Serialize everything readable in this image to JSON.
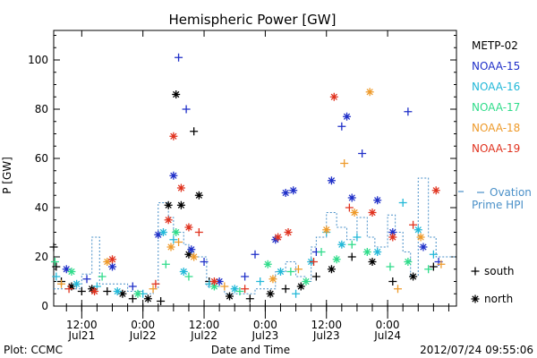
{
  "chart_data": {
    "type": "scatter",
    "title": "Hemispheric Power [GW]",
    "ylabel": "P [GW]",
    "xlabel": "Date and Time",
    "ylim": [
      0,
      112
    ],
    "y_ticks": [
      0,
      20,
      40,
      60,
      80,
      100
    ],
    "x_ticks": [
      {
        "time": "2012-07-21 12:00",
        "label_top": "12:00",
        "label_bottom": "Jul21"
      },
      {
        "time": "2012-07-22 00:00",
        "label_top": "0:00",
        "label_bottom": "Jul22"
      },
      {
        "time": "2012-07-22 12:00",
        "label_top": "12:00",
        "label_bottom": "Jul22"
      },
      {
        "time": "2012-07-23 00:00",
        "label_top": "0:00",
        "label_bottom": "Jul23"
      },
      {
        "time": "2012-07-23 12:00",
        "label_top": "12:00",
        "label_bottom": "Jul23"
      },
      {
        "time": "2012-07-24 00:00",
        "label_top": "0:00",
        "label_bottom": "Jul24"
      }
    ],
    "xlim": [
      "2012-07-21 06:30",
      "2012-07-24 13:30"
    ],
    "legend_placement": "right",
    "marker_legend": [
      {
        "symbol": "+",
        "label": "south"
      },
      {
        "symbol": "*",
        "label": "north"
      }
    ],
    "ovation_label_line1": "Ovation",
    "ovation_label_line2": "Prime HPI",
    "ovation_color": "#4a90c8",
    "ovation_steps": [
      [
        "2012-07-21 06:30",
        7
      ],
      [
        "2012-07-21 12:00",
        13
      ],
      [
        "2012-07-21 14:00",
        28
      ],
      [
        "2012-07-21 15:30",
        9
      ],
      [
        "2012-07-21 21:00",
        6
      ],
      [
        "2012-07-22 00:00",
        5
      ],
      [
        "2012-07-22 02:00",
        7
      ],
      [
        "2012-07-22 03:00",
        42
      ],
      [
        "2012-07-22 05:00",
        36
      ],
      [
        "2012-07-22 06:00",
        30
      ],
      [
        "2012-07-22 08:00",
        25
      ],
      [
        "2012-07-22 09:00",
        22
      ],
      [
        "2012-07-22 10:00",
        20
      ],
      [
        "2012-07-22 12:30",
        8
      ],
      [
        "2012-07-22 16:00",
        5
      ],
      [
        "2012-07-22 22:00",
        7
      ],
      [
        "2012-07-23 02:00",
        14
      ],
      [
        "2012-07-23 04:00",
        18
      ],
      [
        "2012-07-23 06:00",
        12
      ],
      [
        "2012-07-23 08:00",
        10
      ],
      [
        "2012-07-23 09:00",
        24
      ],
      [
        "2012-07-23 10:00",
        28
      ],
      [
        "2012-07-23 12:00",
        38
      ],
      [
        "2012-07-23 14:00",
        32
      ],
      [
        "2012-07-23 16:00",
        27
      ],
      [
        "2012-07-23 18:00",
        36
      ],
      [
        "2012-07-23 20:00",
        28
      ],
      [
        "2012-07-23 21:30",
        24
      ],
      [
        "2012-07-24 00:00",
        37
      ],
      [
        "2012-07-24 01:30",
        30
      ],
      [
        "2012-07-24 03:00",
        22
      ],
      [
        "2012-07-24 04:30",
        12
      ],
      [
        "2012-07-24 06:00",
        52
      ],
      [
        "2012-07-24 08:00",
        28
      ],
      [
        "2012-07-24 09:30",
        20
      ],
      [
        "2012-07-24 13:30",
        20
      ]
    ],
    "series": [
      {
        "name": "METP-02",
        "color": "#000000",
        "points": [
          [
            "2012-07-21 06:30",
            "+",
            24
          ],
          [
            "2012-07-21 07:00",
            "+",
            16
          ],
          [
            "2012-07-21 08:00",
            "+",
            10
          ],
          [
            "2012-07-21 10:00",
            "*",
            8
          ],
          [
            "2012-07-21 12:00",
            "+",
            6
          ],
          [
            "2012-07-21 14:00",
            "*",
            7
          ],
          [
            "2012-07-21 17:00",
            "+",
            6
          ],
          [
            "2012-07-21 20:00",
            "*",
            5
          ],
          [
            "2012-07-21 22:00",
            "+",
            3
          ],
          [
            "2012-07-22 01:00",
            "*",
            3
          ],
          [
            "2012-07-22 03:30",
            "+",
            2
          ],
          [
            "2012-07-22 05:00",
            "*",
            41
          ],
          [
            "2012-07-22 06:30",
            "*",
            86
          ],
          [
            "2012-07-22 07:30",
            "*",
            41
          ],
          [
            "2012-07-22 09:00",
            "*",
            21
          ],
          [
            "2012-07-22 10:00",
            "+",
            71
          ],
          [
            "2012-07-22 11:00",
            "*",
            45
          ],
          [
            "2012-07-22 13:00",
            "+",
            10
          ],
          [
            "2012-07-22 17:00",
            "*",
            4
          ],
          [
            "2012-07-22 21:00",
            "+",
            3
          ],
          [
            "2012-07-23 01:00",
            "*",
            5
          ],
          [
            "2012-07-23 04:00",
            "+",
            7
          ],
          [
            "2012-07-23 07:00",
            "*",
            8
          ],
          [
            "2012-07-23 10:00",
            "+",
            12
          ],
          [
            "2012-07-23 13:00",
            "*",
            15
          ],
          [
            "2012-07-23 17:00",
            "+",
            20
          ],
          [
            "2012-07-23 21:00",
            "*",
            18
          ],
          [
            "2012-07-24 01:00",
            "+",
            10
          ],
          [
            "2012-07-24 05:00",
            "*",
            12
          ],
          [
            "2012-07-24 09:00",
            "+",
            16
          ]
        ]
      },
      {
        "name": "NOAA-15",
        "color": "#1f2fc8",
        "points": [
          [
            "2012-07-21 09:00",
            "*",
            15
          ],
          [
            "2012-07-21 13:00",
            "+",
            11
          ],
          [
            "2012-07-21 18:00",
            "*",
            16
          ],
          [
            "2012-07-21 22:00",
            "+",
            8
          ],
          [
            "2012-07-22 03:00",
            "*",
            29
          ],
          [
            "2012-07-22 06:00",
            "*",
            53
          ],
          [
            "2012-07-22 07:00",
            "+",
            101
          ],
          [
            "2012-07-22 08:30",
            "+",
            80
          ],
          [
            "2012-07-22 09:30",
            "*",
            23
          ],
          [
            "2012-07-22 12:00",
            "+",
            18
          ],
          [
            "2012-07-22 15:00",
            "*",
            10
          ],
          [
            "2012-07-22 20:00",
            "+",
            12
          ],
          [
            "2012-07-22 22:00",
            "+",
            21
          ],
          [
            "2012-07-23 02:00",
            "*",
            27
          ],
          [
            "2012-07-23 04:00",
            "*",
            46
          ],
          [
            "2012-07-23 05:30",
            "*",
            47
          ],
          [
            "2012-07-23 10:00",
            "+",
            22
          ],
          [
            "2012-07-23 13:00",
            "*",
            51
          ],
          [
            "2012-07-23 15:00",
            "+",
            73
          ],
          [
            "2012-07-23 16:00",
            "*",
            77
          ],
          [
            "2012-07-23 17:00",
            "*",
            44
          ],
          [
            "2012-07-23 19:00",
            "+",
            62
          ],
          [
            "2012-07-23 22:00",
            "*",
            43
          ],
          [
            "2012-07-24 01:00",
            "*",
            30
          ],
          [
            "2012-07-24 04:00",
            "+",
            79
          ],
          [
            "2012-07-24 07:00",
            "*",
            24
          ],
          [
            "2012-07-24 10:00",
            "+",
            18
          ]
        ]
      },
      {
        "name": "NOAA-16",
        "color": "#22b8d8",
        "points": [
          [
            "2012-07-21 07:00",
            "+",
            12
          ],
          [
            "2012-07-21 11:00",
            "*",
            9
          ],
          [
            "2012-07-21 15:00",
            "+",
            8
          ],
          [
            "2012-07-21 19:00",
            "*",
            6
          ],
          [
            "2012-07-22 00:00",
            "+",
            5
          ],
          [
            "2012-07-22 04:00",
            "*",
            30
          ],
          [
            "2012-07-22 06:00",
            "+",
            27
          ],
          [
            "2012-07-22 08:00",
            "*",
            14
          ],
          [
            "2012-07-22 13:00",
            "+",
            9
          ],
          [
            "2012-07-22 18:00",
            "*",
            7
          ],
          [
            "2012-07-22 23:00",
            "+",
            10
          ],
          [
            "2012-07-23 03:00",
            "*",
            14
          ],
          [
            "2012-07-23 06:00",
            "+",
            5
          ],
          [
            "2012-07-23 09:00",
            "*",
            18
          ],
          [
            "2012-07-23 12:00",
            "+",
            30
          ],
          [
            "2012-07-23 15:00",
            "*",
            25
          ],
          [
            "2012-07-23 18:00",
            "+",
            28
          ],
          [
            "2012-07-23 22:00",
            "*",
            22
          ],
          [
            "2012-07-24 03:00",
            "+",
            42
          ],
          [
            "2012-07-24 06:00",
            "*",
            31
          ],
          [
            "2012-07-24 09:00",
            "+",
            21
          ]
        ]
      },
      {
        "name": "NOAA-17",
        "color": "#2fdc8a",
        "points": [
          [
            "2012-07-21 06:45",
            "+",
            18
          ],
          [
            "2012-07-21 10:00",
            "*",
            14
          ],
          [
            "2012-07-21 16:00",
            "+",
            12
          ],
          [
            "2012-07-21 23:00",
            "*",
            5
          ],
          [
            "2012-07-22 04:30",
            "+",
            17
          ],
          [
            "2012-07-22 06:30",
            "*",
            30
          ],
          [
            "2012-07-22 09:00",
            "+",
            12
          ],
          [
            "2012-07-22 14:00",
            "*",
            8
          ],
          [
            "2012-07-22 19:00",
            "+",
            6
          ],
          [
            "2012-07-23 00:30",
            "*",
            17
          ],
          [
            "2012-07-23 05:00",
            "+",
            14
          ],
          [
            "2012-07-23 08:00",
            "*",
            10
          ],
          [
            "2012-07-23 11:00",
            "+",
            22
          ],
          [
            "2012-07-23 14:00",
            "*",
            19
          ],
          [
            "2012-07-23 17:00",
            "+",
            25
          ],
          [
            "2012-07-23 20:00",
            "*",
            22
          ],
          [
            "2012-07-24 00:30",
            "+",
            16
          ],
          [
            "2012-07-24 04:00",
            "*",
            18
          ],
          [
            "2012-07-24 08:00",
            "+",
            15
          ]
        ]
      },
      {
        "name": "NOAA-18",
        "color": "#ee9a2a",
        "points": [
          [
            "2012-07-21 08:00",
            "+",
            9
          ],
          [
            "2012-07-21 17:00",
            "*",
            18
          ],
          [
            "2012-07-22 02:00",
            "+",
            7
          ],
          [
            "2012-07-22 05:30",
            "*",
            24
          ],
          [
            "2012-07-22 07:00",
            "+",
            26
          ],
          [
            "2012-07-22 10:00",
            "*",
            20
          ],
          [
            "2012-07-22 16:00",
            "+",
            8
          ],
          [
            "2012-07-23 01:30",
            "*",
            11
          ],
          [
            "2012-07-23 06:30",
            "+",
            15
          ],
          [
            "2012-07-23 12:00",
            "*",
            31
          ],
          [
            "2012-07-23 15:30",
            "+",
            58
          ],
          [
            "2012-07-23 17:30",
            "*",
            38
          ],
          [
            "2012-07-23 20:30",
            "*",
            87
          ],
          [
            "2012-07-24 02:00",
            "+",
            7
          ],
          [
            "2012-07-24 06:30",
            "*",
            28
          ],
          [
            "2012-07-24 10:30",
            "+",
            17
          ]
        ]
      },
      {
        "name": "NOAA-19",
        "color": "#e0321e",
        "points": [
          [
            "2012-07-21 09:30",
            "+",
            7
          ],
          [
            "2012-07-21 14:30",
            "*",
            6
          ],
          [
            "2012-07-21 18:00",
            "*",
            19
          ],
          [
            "2012-07-22 02:30",
            "+",
            9
          ],
          [
            "2012-07-22 05:00",
            "*",
            35
          ],
          [
            "2012-07-22 06:00",
            "*",
            69
          ],
          [
            "2012-07-22 07:30",
            "*",
            48
          ],
          [
            "2012-07-22 09:00",
            "*",
            32
          ],
          [
            "2012-07-22 11:00",
            "+",
            30
          ],
          [
            "2012-07-22 14:00",
            "*",
            10
          ],
          [
            "2012-07-22 20:00",
            "+",
            7
          ],
          [
            "2012-07-23 02:30",
            "*",
            28
          ],
          [
            "2012-07-23 04:30",
            "*",
            30
          ],
          [
            "2012-07-23 09:30",
            "+",
            18
          ],
          [
            "2012-07-23 13:30",
            "*",
            85
          ],
          [
            "2012-07-23 16:30",
            "+",
            40
          ],
          [
            "2012-07-23 21:00",
            "*",
            38
          ],
          [
            "2012-07-24 01:00",
            "*",
            28
          ],
          [
            "2012-07-24 05:00",
            "+",
            33
          ],
          [
            "2012-07-24 09:30",
            "*",
            47
          ]
        ]
      }
    ]
  },
  "footer": {
    "plot_credit": "Plot: CCMC",
    "timestamp": "2012/07/24 09:55:06"
  }
}
